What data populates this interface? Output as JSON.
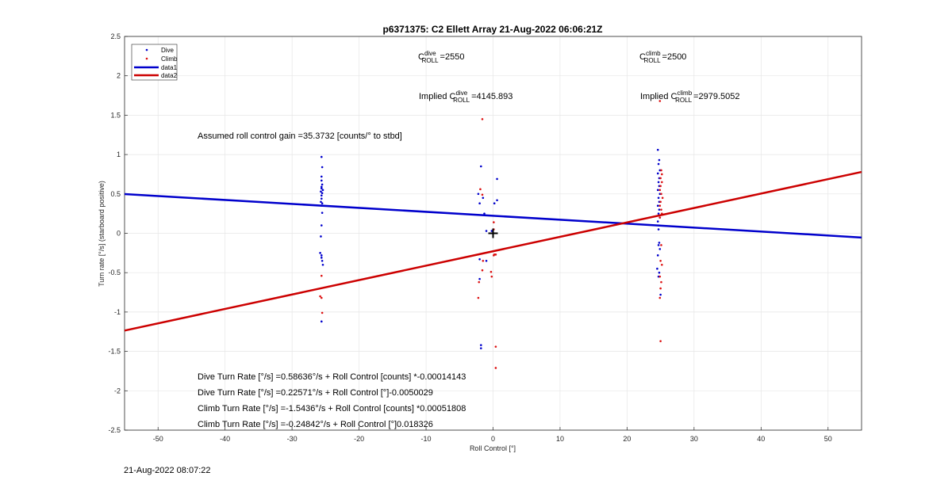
{
  "chart_data": {
    "type": "scatter",
    "title": "p6371375: C2 Ellett Array 21-Aug-2022 06:06:21Z",
    "xlabel": "Roll Control [°]",
    "ylabel": "Turn rate [°/s] (starboard positive)",
    "xlim": [
      -55,
      55
    ],
    "ylim": [
      -2.5,
      2.5
    ],
    "xticks": [
      -50,
      -40,
      -30,
      -20,
      -10,
      0,
      10,
      20,
      30,
      40,
      50
    ],
    "yticks": [
      2.5,
      2,
      1.5,
      1,
      0.5,
      0,
      -0.5,
      -1,
      -1.5,
      -2,
      -2.5
    ],
    "grid": true,
    "legend": {
      "placement": "top-left",
      "entries": [
        "Dive",
        "Climb",
        "data1",
        "data2"
      ]
    },
    "colors": {
      "dive": "#0000cc",
      "climb": "#dd1111",
      "data1": "#0000cc",
      "data2": "#cc0000",
      "marker": "#000000"
    },
    "series": [
      {
        "name": "Dive",
        "kind": "points",
        "points": [
          [
            -25.6,
            0.97
          ],
          [
            -25.5,
            0.84
          ],
          [
            -25.6,
            0.72
          ],
          [
            -25.6,
            0.67
          ],
          [
            -25.5,
            0.62
          ],
          [
            -25.6,
            0.59
          ],
          [
            -25.6,
            0.57
          ],
          [
            -25.4,
            0.55
          ],
          [
            -25.7,
            0.53
          ],
          [
            -25.5,
            0.51
          ],
          [
            -25.6,
            0.48
          ],
          [
            -25.6,
            0.44
          ],
          [
            -25.7,
            0.4
          ],
          [
            -25.5,
            0.38
          ],
          [
            -25.6,
            0.35
          ],
          [
            -25.5,
            0.26
          ],
          [
            -25.6,
            0.1
          ],
          [
            -25.7,
            -0.04
          ],
          [
            -25.8,
            -0.25
          ],
          [
            -25.6,
            -0.28
          ],
          [
            -25.6,
            -0.31
          ],
          [
            -25.5,
            -0.35
          ],
          [
            -25.4,
            -0.4
          ],
          [
            -25.6,
            -1.12
          ],
          [
            -1.8,
            0.85
          ],
          [
            -2.2,
            0.5
          ],
          [
            -1.5,
            0.45
          ],
          [
            -2.0,
            0.38
          ],
          [
            -1.3,
            0.25
          ],
          [
            -1.0,
            0.03
          ],
          [
            -2.0,
            -0.33
          ],
          [
            -1.0,
            -0.35
          ],
          [
            -2.0,
            -0.58
          ],
          [
            -1.8,
            -1.42
          ],
          [
            -1.8,
            -1.46
          ],
          [
            0.2,
            0.38
          ],
          [
            0.6,
            0.42
          ],
          [
            0.6,
            0.69
          ],
          [
            -0.2,
            0.03
          ],
          [
            24.6,
            1.06
          ],
          [
            24.8,
            0.93
          ],
          [
            24.7,
            0.88
          ],
          [
            24.9,
            0.8
          ],
          [
            24.6,
            0.76
          ],
          [
            24.8,
            0.7
          ],
          [
            24.7,
            0.65
          ],
          [
            24.8,
            0.6
          ],
          [
            24.6,
            0.55
          ],
          [
            24.9,
            0.5
          ],
          [
            24.7,
            0.45
          ],
          [
            24.8,
            0.4
          ],
          [
            24.6,
            0.35
          ],
          [
            24.8,
            0.3
          ],
          [
            24.7,
            0.25
          ],
          [
            24.9,
            0.2
          ],
          [
            24.6,
            0.15
          ],
          [
            24.7,
            0.05
          ],
          [
            24.8,
            -0.12
          ],
          [
            24.7,
            -0.15
          ],
          [
            24.9,
            -0.2
          ],
          [
            24.6,
            -0.28
          ],
          [
            24.5,
            -0.45
          ],
          [
            24.8,
            -0.5
          ],
          [
            24.7,
            -0.55
          ],
          [
            25.0,
            -0.78
          ]
        ]
      },
      {
        "name": "Climb",
        "kind": "points",
        "points": [
          [
            -25.6,
            -0.54
          ],
          [
            -25.8,
            -0.8
          ],
          [
            -25.6,
            -0.82
          ],
          [
            -25.5,
            -1.01
          ],
          [
            -1.6,
            1.45
          ],
          [
            -1.9,
            0.56
          ],
          [
            -1.6,
            0.49
          ],
          [
            -1.5,
            -0.35
          ],
          [
            -1.6,
            -0.47
          ],
          [
            -2.1,
            -0.62
          ],
          [
            -2.2,
            -0.82
          ],
          [
            -0.2,
            -0.55
          ],
          [
            -0.3,
            -0.49
          ],
          [
            0.1,
            -0.28
          ],
          [
            0.4,
            -0.27
          ],
          [
            0.2,
            -0.27
          ],
          [
            0.1,
            0.14
          ],
          [
            0.1,
            0.05
          ],
          [
            0.4,
            -1.44
          ],
          [
            0.4,
            -1.71
          ],
          [
            24.9,
            1.68
          ],
          [
            25.1,
            0.8
          ],
          [
            25.2,
            0.75
          ],
          [
            25.0,
            0.7
          ],
          [
            25.2,
            0.65
          ],
          [
            25.0,
            0.6
          ],
          [
            24.9,
            0.55
          ],
          [
            25.1,
            0.5
          ],
          [
            25.3,
            0.45
          ],
          [
            25.0,
            0.4
          ],
          [
            24.9,
            0.35
          ],
          [
            25.1,
            0.3
          ],
          [
            25.2,
            0.25
          ],
          [
            24.9,
            0.2
          ],
          [
            25.1,
            -0.15
          ],
          [
            25.0,
            -0.35
          ],
          [
            25.2,
            -0.4
          ],
          [
            24.9,
            -0.55
          ],
          [
            25.1,
            -0.62
          ],
          [
            25.0,
            -0.7
          ],
          [
            24.9,
            -0.82
          ],
          [
            25.0,
            -1.37
          ]
        ]
      },
      {
        "name": "data1",
        "kind": "line",
        "points": [
          [
            -55,
            0.4984
          ],
          [
            55,
            -0.0535
          ]
        ]
      },
      {
        "name": "data2",
        "kind": "line",
        "points": [
          [
            -55,
            -1.2354
          ],
          [
            55,
            0.7792
          ]
        ]
      }
    ],
    "marker": {
      "x": 0,
      "y": 0,
      "symbol": "+"
    },
    "annotations": {
      "c_dive": {
        "base": "C",
        "sup": "dive",
        "sub": "ROLL",
        "rest": "=2550"
      },
      "c_climb": {
        "base": "C",
        "sup": "climb",
        "sub": "ROLL",
        "rest": "=2500"
      },
      "implied_dive": {
        "prefix": "Implied C",
        "sup": "dive",
        "sub": "ROLL",
        "rest": "=4145.893"
      },
      "implied_climb": {
        "prefix": "Implied C",
        "sup": "climb",
        "sub": "ROLL",
        "rest": "=2979.5052"
      },
      "gain": "Assumed roll control gain =35.3732 [counts/° to stbd]",
      "eq1": "Dive Turn Rate [°/s] =0.58636°/s + Roll Control [counts] *-0.00014143",
      "eq2": "Dive Turn Rate [°/s] =0.22571°/s + Roll Control [°]-0.0050029",
      "eq3": "Climb Turn Rate [°/s] =-1.5436°/s + Roll Control [counts] *0.00051808",
      "eq4": "Climb Turn Rate [°/s] =-0.24842°/s + Roll Control [°]0.018326"
    }
  },
  "footer": {
    "timestamp": "21-Aug-2022 08:07:22"
  }
}
